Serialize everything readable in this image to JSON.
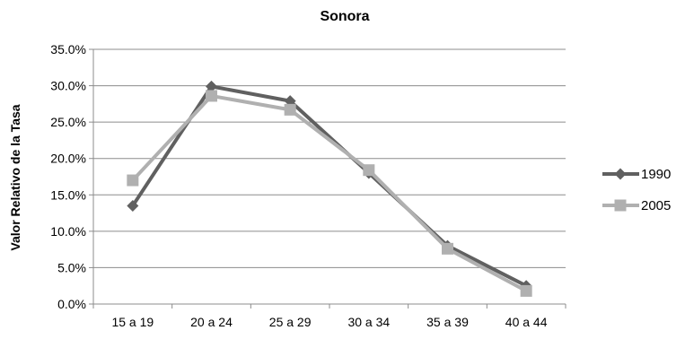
{
  "chart_data": {
    "type": "line",
    "title": "Sonora",
    "xlabel": "",
    "ylabel": "Valor Relativo de la Tasa",
    "categories": [
      "15 a 19",
      "20 a 24",
      "25 a 29",
      "30 a 34",
      "35 a 39",
      "40 a 44"
    ],
    "ylim": [
      0,
      0.35
    ],
    "yticks": [
      0,
      0.05,
      0.1,
      0.15,
      0.2,
      0.25,
      0.3,
      0.35
    ],
    "ytick_labels": [
      "0.0%",
      "5.0%",
      "10.0%",
      "15.0%",
      "20.0%",
      "25.0%",
      "30.0%",
      "35.0%"
    ],
    "grid": true,
    "legend_position": "right",
    "series": [
      {
        "name": "1990",
        "marker": "diamond",
        "color": "#606060",
        "values": [
          0.135,
          0.299,
          0.279,
          0.18,
          0.08,
          0.025
        ]
      },
      {
        "name": "2005",
        "marker": "square",
        "color": "#b0b0b0",
        "values": [
          0.17,
          0.286,
          0.267,
          0.184,
          0.076,
          0.018
        ]
      }
    ]
  }
}
